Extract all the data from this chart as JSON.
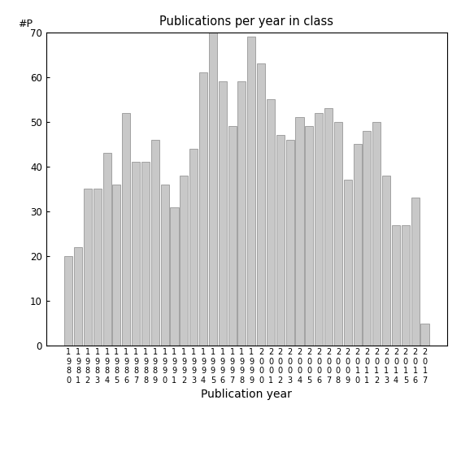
{
  "title": "Publications per year in class",
  "xlabel": "Publication year",
  "ylabel": "#P",
  "bar_color": "#c8c8c8",
  "bar_edge_color": "#888888",
  "ylim": [
    0,
    70
  ],
  "yticks": [
    0,
    10,
    20,
    30,
    40,
    50,
    60,
    70
  ],
  "years": [
    "1980",
    "1981",
    "1982",
    "1983",
    "1984",
    "1985",
    "1986",
    "1987",
    "1988",
    "1989",
    "1990",
    "1991",
    "1992",
    "1993",
    "1994",
    "1995",
    "1996",
    "1997",
    "1998",
    "1999",
    "2000",
    "2001",
    "2002",
    "2003",
    "2004",
    "2005",
    "2006",
    "2007",
    "2008",
    "2009",
    "2010",
    "2011",
    "2012",
    "2013",
    "2014",
    "2015",
    "2016",
    "2017"
  ],
  "values": [
    20,
    22,
    35,
    35,
    43,
    36,
    52,
    41,
    41,
    46,
    36,
    31,
    38,
    44,
    61,
    70,
    59,
    49,
    59,
    69,
    63,
    55,
    47,
    46,
    51,
    49,
    52,
    53,
    50,
    37,
    45,
    48,
    50,
    38,
    27,
    27,
    33,
    5
  ]
}
